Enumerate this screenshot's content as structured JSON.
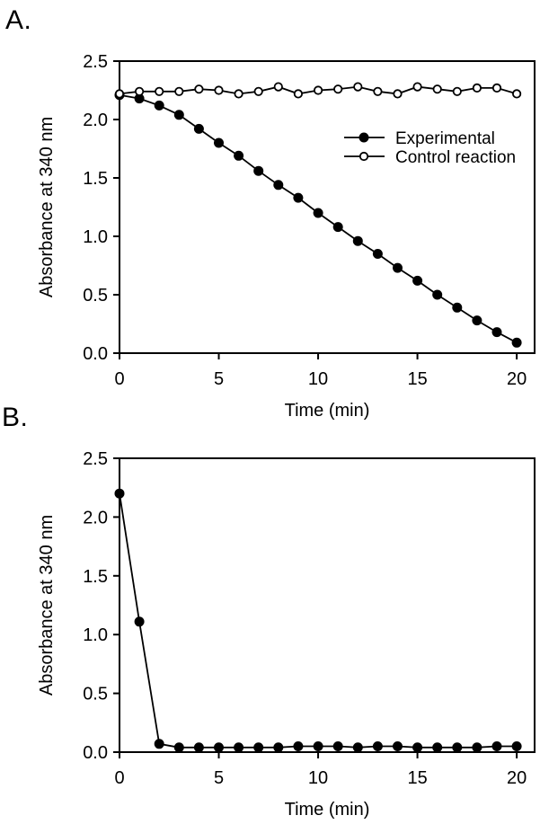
{
  "figure": {
    "background_color": "#ffffff",
    "ink_color": "#000000"
  },
  "chart_data": [
    {
      "panel_label": "A.",
      "type": "line",
      "xlabel": "Time (min)",
      "ylabel": "Absorbance at 340 nm",
      "xlim": [
        0,
        20.9
      ],
      "ylim": [
        0,
        2.5
      ],
      "xticks": [
        "0",
        "5",
        "10",
        "15",
        "20"
      ],
      "yticks": [
        "0.0",
        "0.5",
        "1.0",
        "1.5",
        "2.0",
        "2.5"
      ],
      "grid": false,
      "legend_position": "inside-right",
      "x": [
        0,
        1,
        2,
        3,
        4,
        5,
        6,
        7,
        8,
        9,
        10,
        11,
        12,
        13,
        14,
        15,
        16,
        17,
        18,
        19,
        20
      ],
      "series": [
        {
          "name": "Experimental",
          "marker": "filled-circle",
          "values": [
            2.21,
            2.18,
            2.12,
            2.04,
            1.92,
            1.8,
            1.69,
            1.56,
            1.44,
            1.33,
            1.2,
            1.08,
            0.96,
            0.85,
            0.73,
            0.62,
            0.5,
            0.39,
            0.28,
            0.18,
            0.09
          ]
        },
        {
          "name": "Control reaction",
          "marker": "open-circle",
          "values": [
            2.22,
            2.24,
            2.24,
            2.24,
            2.26,
            2.25,
            2.22,
            2.24,
            2.28,
            2.22,
            2.25,
            2.26,
            2.28,
            2.24,
            2.22,
            2.28,
            2.26,
            2.24,
            2.27,
            2.27,
            2.22
          ]
        }
      ]
    },
    {
      "panel_label": "B.",
      "type": "line",
      "xlabel": "Time (min)",
      "ylabel": "Absorbance at 340 nm",
      "xlim": [
        0,
        20.9
      ],
      "ylim": [
        0,
        2.5
      ],
      "xticks": [
        "0",
        "5",
        "10",
        "15",
        "20"
      ],
      "yticks": [
        "0.0",
        "0.5",
        "1.0",
        "1.5",
        "2.0",
        "2.5"
      ],
      "grid": false,
      "legend_position": "none",
      "x": [
        0,
        1,
        2,
        3,
        4,
        5,
        6,
        7,
        8,
        9,
        10,
        11,
        12,
        13,
        14,
        15,
        16,
        17,
        18,
        19,
        20
      ],
      "series": [
        {
          "name": "",
          "marker": "filled-circle",
          "values": [
            2.2,
            1.11,
            0.07,
            0.04,
            0.04,
            0.04,
            0.04,
            0.04,
            0.04,
            0.05,
            0.05,
            0.05,
            0.04,
            0.05,
            0.05,
            0.04,
            0.04,
            0.04,
            0.04,
            0.05,
            0.05
          ]
        }
      ]
    }
  ]
}
